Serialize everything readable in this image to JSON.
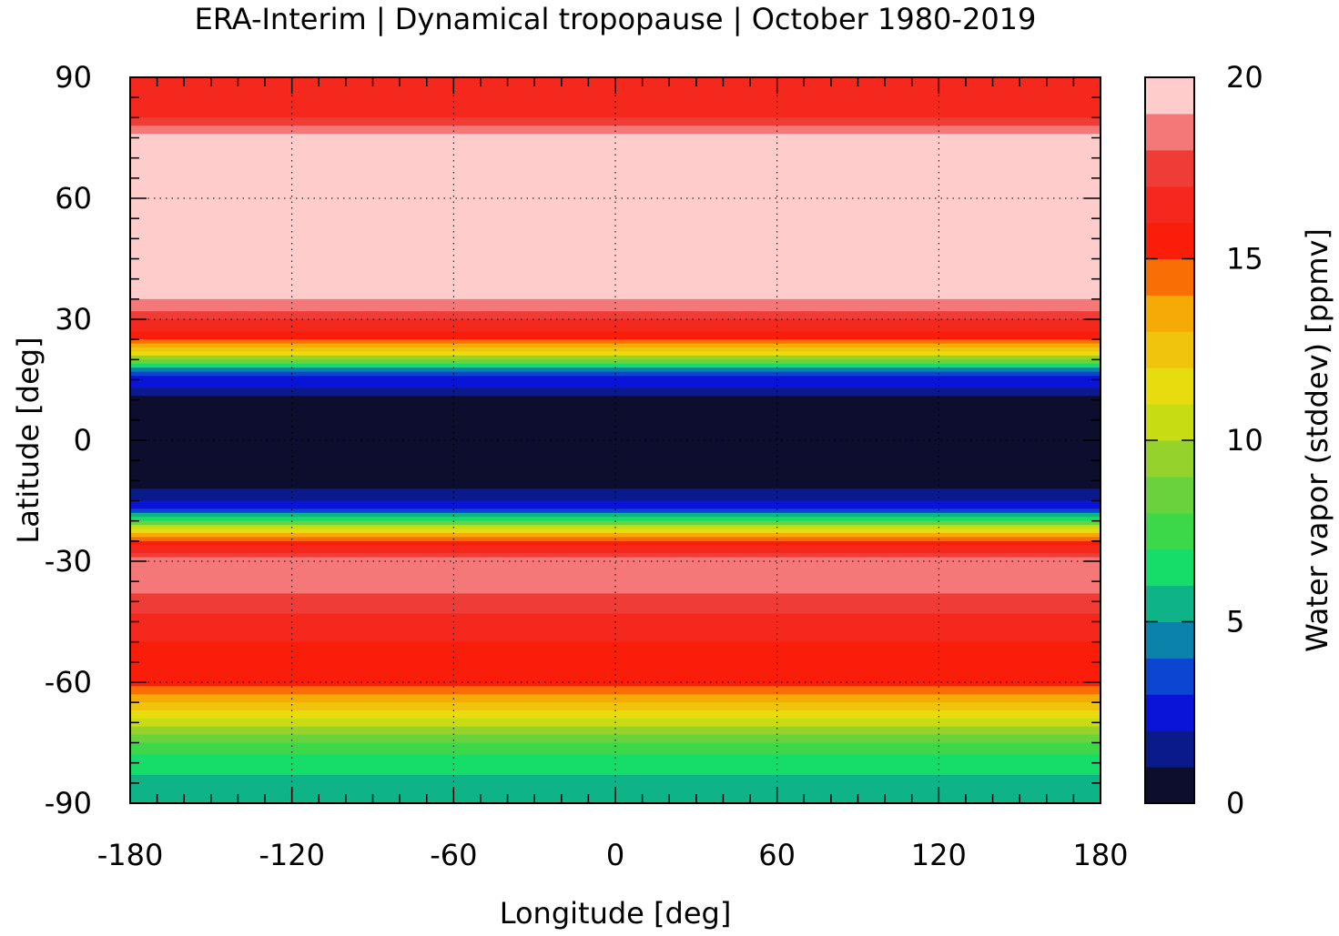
{
  "chart_data": {
    "type": "heatmap",
    "title": "ERA-Interim | Dynamical tropopause | October 1980-2019",
    "xlabel": "Longitude [deg]",
    "ylabel": "Latitude [deg]",
    "xlim": [
      -180,
      180
    ],
    "ylim": [
      -90,
      90
    ],
    "x_ticks": [
      "-180",
      "-120",
      "-60",
      "0",
      "60",
      "120",
      "180"
    ],
    "y_ticks": [
      "90",
      "60",
      "30",
      "0",
      "-30",
      "-60",
      "-90"
    ],
    "grid": true,
    "colorbar": {
      "label": "Water vapor (stddev) [ppmv]",
      "range": [
        0,
        20
      ],
      "ticks": [
        "20",
        "15",
        "10",
        "5",
        "0"
      ],
      "levels": [
        0,
        1,
        2,
        3,
        4,
        5,
        6,
        7,
        8,
        9,
        10,
        11,
        12,
        13,
        14,
        15,
        16,
        17,
        18,
        19,
        20
      ],
      "colors": [
        "#0d0d2e",
        "#0a1a8a",
        "#0a14d8",
        "#0a46d2",
        "#0a82aa",
        "#0eb488",
        "#16dc6a",
        "#3cd84a",
        "#6ad23c",
        "#96d22c",
        "#c8dc14",
        "#e6dc0e",
        "#f0c40c",
        "#f5aa06",
        "#fa6e06",
        "#fa1e0a",
        "#f5281e",
        "#f03c36",
        "#f57878",
        "#ffcccc"
      ]
    },
    "zonal_profile": {
      "lat": [
        90,
        85,
        80,
        75,
        70,
        65,
        60,
        55,
        50,
        45,
        40,
        35,
        30,
        25,
        22,
        20,
        18,
        15,
        12,
        10,
        5,
        0,
        -5,
        -10,
        -14,
        -17,
        -20,
        -22,
        -25,
        -28,
        -30,
        -35,
        -40,
        -45,
        -50,
        -55,
        -60,
        -65,
        -70,
        -75,
        -80,
        -85,
        -90
      ],
      "value": [
        16,
        16,
        17,
        19.5,
        19.5,
        19.5,
        19.5,
        19.5,
        19.5,
        19.5,
        19.5,
        19,
        17,
        15,
        12,
        9,
        5,
        2.5,
        1.5,
        0.5,
        0.3,
        0.3,
        0.3,
        0.5,
        1.5,
        3,
        7,
        11,
        15,
        17,
        18.5,
        18.5,
        17.5,
        16.5,
        16,
        15.5,
        15.5,
        13,
        10.5,
        8,
        6.5,
        5.5,
        5
      ]
    }
  }
}
